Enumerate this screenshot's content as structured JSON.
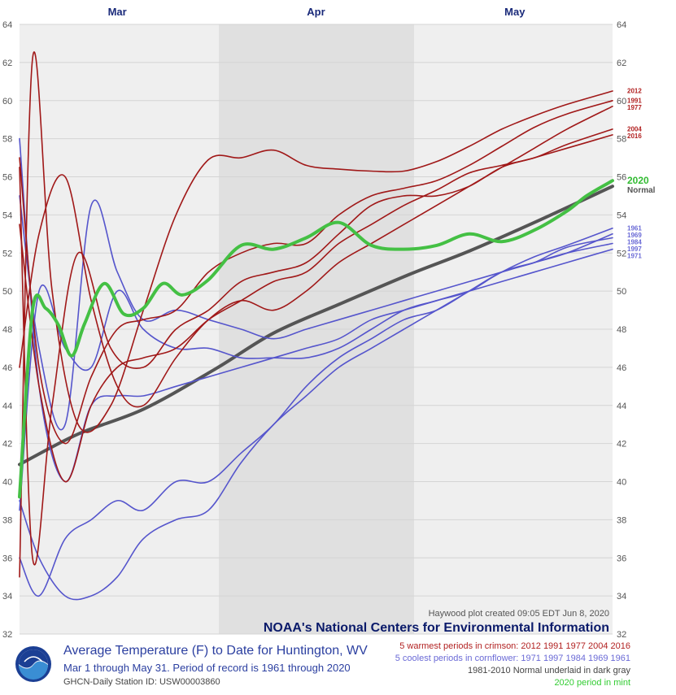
{
  "chart_data": {
    "type": "line",
    "title": "Average Temperature (F) to Date for Huntington, WV",
    "subtitle": "Mar 1 through May 31. Period of record is 1961 through 2020",
    "station": "GHCN-Daily Station ID: USW00003860",
    "credit": "Haywood plot created 09:05 EDT Jun 8, 2020",
    "organization": "NOAA's National Centers for Environmental Information",
    "x_unit": "day of season (Mar 1 = 1)",
    "xlim": [
      1,
      92
    ],
    "ylim": [
      32,
      64
    ],
    "y_ticks": [
      32,
      34,
      36,
      38,
      40,
      42,
      44,
      46,
      48,
      50,
      52,
      54,
      56,
      58,
      60,
      62,
      64
    ],
    "months": [
      {
        "label": "Mar",
        "start": 1,
        "end": 31
      },
      {
        "label": "Apr",
        "start": 32,
        "end": 61
      },
      {
        "label": "May",
        "start": 62,
        "end": 92
      }
    ],
    "legend": [
      {
        "text": "5 warmest periods in crimson: 2012 1991 1977 2004 2016",
        "color": "#b22222"
      },
      {
        "text": "5 coolest periods in cornflower: 1971 1997 1984 1969 1961",
        "color": "#6a6ad6"
      },
      {
        "text": "1981-2010 Normal underlaid in dark gray",
        "color": "#444444"
      },
      {
        "text": "2020 period in mint",
        "color": "#33cc33"
      }
    ],
    "colors": {
      "warm": "#a01818",
      "cool": "#5555cc",
      "normal": "#555555",
      "current": "#44c044",
      "other": "#b4b4b4"
    },
    "series": [
      {
        "name": "2020",
        "group": "current",
        "x": [
          1,
          3,
          5,
          7,
          9,
          11,
          14,
          17,
          20,
          23,
          26,
          30,
          35,
          40,
          45,
          50,
          55,
          60,
          65,
          70,
          75,
          80,
          85,
          88,
          92
        ],
        "y": [
          39.2,
          49.0,
          49.1,
          48.2,
          46.6,
          48.3,
          50.4,
          48.8,
          49.1,
          50.4,
          49.8,
          50.6,
          52.4,
          52.2,
          52.8,
          53.6,
          52.4,
          52.2,
          52.4,
          53.0,
          52.6,
          53.2,
          54.2,
          55.0,
          55.8
        ]
      },
      {
        "name": "Normal",
        "group": "normal",
        "x": [
          1,
          10,
          20,
          31,
          40,
          50,
          61,
          70,
          80,
          92
        ],
        "y": [
          40.9,
          42.5,
          43.8,
          45.9,
          47.8,
          49.3,
          50.9,
          52.1,
          53.6,
          55.5
        ]
      },
      {
        "name": "2012",
        "group": "warm",
        "x": [
          1,
          3,
          6,
          10,
          15,
          20,
          25,
          30,
          35,
          40,
          45,
          50,
          55,
          60,
          65,
          70,
          75,
          80,
          85,
          92
        ],
        "y": [
          35.0,
          62.2,
          50.0,
          43.0,
          44.0,
          49.0,
          54.0,
          56.9,
          57.0,
          57.4,
          56.6,
          56.4,
          56.3,
          56.3,
          56.8,
          57.6,
          58.5,
          59.2,
          59.8,
          60.5
        ]
      },
      {
        "name": "1991",
        "group": "warm",
        "x": [
          1,
          4,
          8,
          12,
          16,
          20,
          25,
          30,
          35,
          40,
          45,
          50,
          55,
          60,
          65,
          70,
          75,
          80,
          85,
          92
        ],
        "y": [
          57.0,
          46.0,
          42.0,
          45.5,
          48.0,
          48.5,
          49.0,
          51.0,
          52.0,
          52.5,
          52.5,
          54.0,
          55.0,
          55.4,
          55.8,
          56.6,
          57.6,
          58.6,
          59.3,
          60.0
        ]
      },
      {
        "name": "1977",
        "group": "warm",
        "x": [
          1,
          4,
          8,
          12,
          16,
          20,
          25,
          30,
          35,
          40,
          45,
          50,
          55,
          60,
          65,
          70,
          75,
          80,
          85,
          92
        ],
        "y": [
          46.0,
          53.0,
          56.0,
          49.5,
          45.0,
          44.0,
          46.5,
          48.5,
          49.5,
          49.0,
          50.0,
          51.5,
          52.5,
          53.5,
          54.5,
          55.5,
          56.5,
          57.5,
          58.5,
          59.7
        ]
      },
      {
        "name": "2004",
        "group": "warm",
        "x": [
          1,
          4,
          8,
          12,
          16,
          20,
          25,
          30,
          35,
          40,
          45,
          50,
          55,
          60,
          65,
          70,
          75,
          80,
          85,
          92
        ],
        "y": [
          53.5,
          45.0,
          40.0,
          44.0,
          46.0,
          46.5,
          47.0,
          48.5,
          49.5,
          50.5,
          51.0,
          52.5,
          53.5,
          54.5,
          55.3,
          56.2,
          56.6,
          57.0,
          57.7,
          58.5
        ]
      },
      {
        "name": "2016",
        "group": "warm",
        "x": [
          1,
          3,
          6,
          10,
          15,
          20,
          25,
          30,
          35,
          40,
          45,
          50,
          55,
          60,
          65,
          70,
          75,
          80,
          85,
          92
        ],
        "y": [
          56.5,
          36.0,
          44.0,
          52.0,
          47.0,
          46.0,
          48.0,
          49.0,
          50.5,
          51.0,
          51.5,
          53.0,
          54.5,
          55.0,
          55.0,
          55.5,
          56.5,
          57.0,
          57.5,
          58.2
        ]
      },
      {
        "name": "1971",
        "group": "cool",
        "x": [
          1,
          4,
          8,
          12,
          16,
          20,
          25,
          30,
          35,
          40,
          45,
          50,
          55,
          60,
          65,
          70,
          75,
          80,
          85,
          92
        ],
        "y": [
          58.0,
          45.0,
          40.0,
          44.0,
          44.5,
          44.5,
          45.0,
          45.5,
          46.0,
          46.5,
          47.0,
          47.5,
          48.5,
          49.0,
          49.5,
          50.0,
          50.5,
          51.0,
          51.5,
          52.2
        ]
      },
      {
        "name": "1997",
        "group": "cool",
        "x": [
          1,
          4,
          8,
          12,
          16,
          20,
          25,
          30,
          35,
          40,
          45,
          50,
          55,
          60,
          65,
          70,
          75,
          80,
          85,
          92
        ],
        "y": [
          55.0,
          47.0,
          43.0,
          54.5,
          51.0,
          48.5,
          49.0,
          48.5,
          48.0,
          47.5,
          48.0,
          48.5,
          49.0,
          49.5,
          50.0,
          50.5,
          51.0,
          51.5,
          52.0,
          52.5
        ]
      },
      {
        "name": "1984",
        "group": "cool",
        "x": [
          1,
          4,
          8,
          12,
          16,
          20,
          25,
          30,
          35,
          40,
          45,
          50,
          55,
          60,
          65,
          70,
          75,
          80,
          85,
          92
        ],
        "y": [
          38.5,
          50.0,
          47.0,
          46.0,
          50.0,
          48.0,
          47.0,
          47.0,
          46.5,
          46.5,
          46.5,
          47.0,
          48.0,
          49.0,
          49.5,
          50.0,
          51.0,
          51.5,
          52.3,
          52.8
        ]
      },
      {
        "name": "1969",
        "group": "cool",
        "x": [
          1,
          4,
          8,
          12,
          16,
          20,
          25,
          30,
          35,
          40,
          45,
          50,
          55,
          60,
          65,
          70,
          75,
          80,
          85,
          92
        ],
        "y": [
          36.0,
          34.0,
          37.0,
          38.0,
          39.0,
          38.5,
          40.0,
          40.0,
          41.5,
          43.0,
          45.0,
          46.5,
          47.5,
          48.5,
          49.0,
          50.0,
          51.0,
          51.5,
          52.0,
          53.0
        ]
      },
      {
        "name": "1961",
        "group": "cool",
        "x": [
          1,
          4,
          8,
          12,
          16,
          20,
          25,
          30,
          35,
          40,
          45,
          50,
          55,
          60,
          65,
          70,
          75,
          80,
          85,
          92
        ],
        "y": [
          39.0,
          36.0,
          34.0,
          34.0,
          35.0,
          37.0,
          38.0,
          38.5,
          41.0,
          43.0,
          44.5,
          46.0,
          47.0,
          48.0,
          49.0,
          50.0,
          51.0,
          51.8,
          52.4,
          53.3
        ]
      }
    ]
  }
}
